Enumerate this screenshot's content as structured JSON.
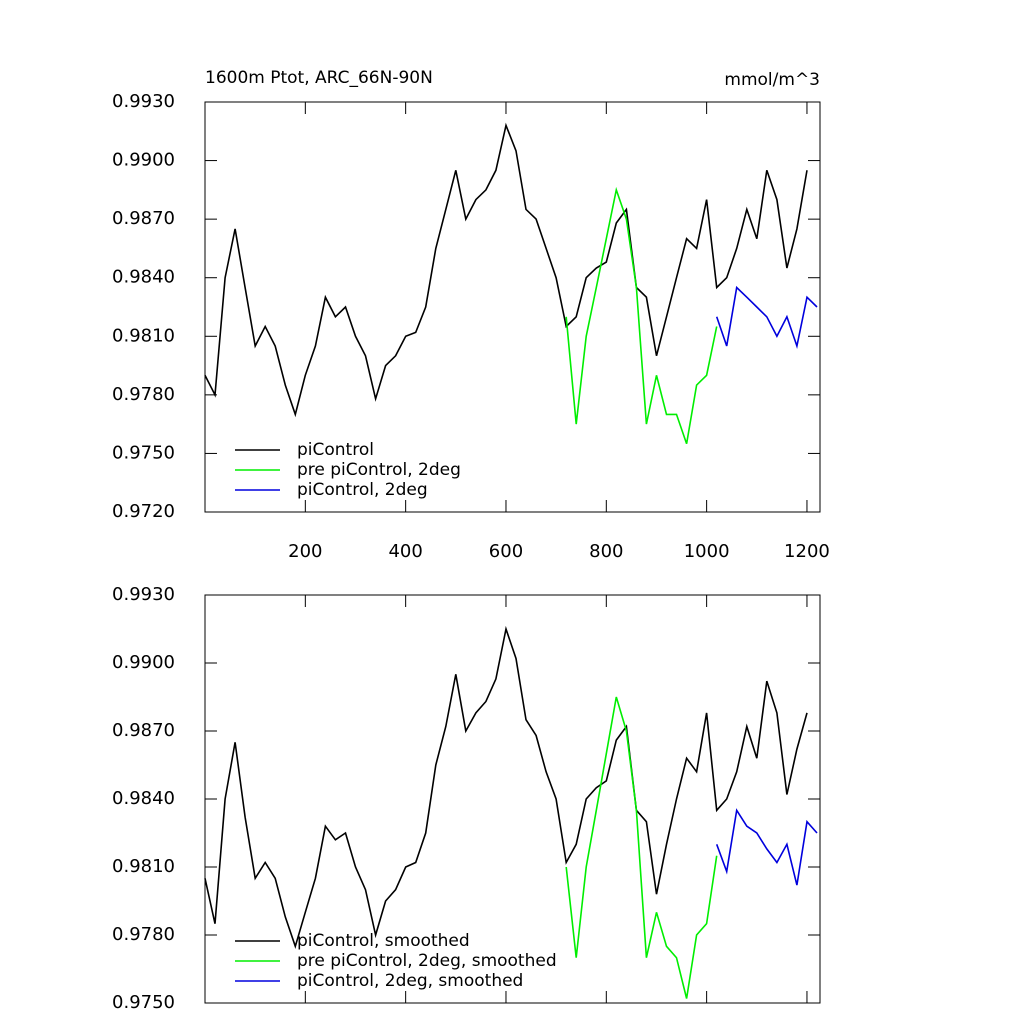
{
  "chart_data": [
    {
      "type": "line",
      "title": "1600m Ptot, ARC_66N-90N",
      "units": "mmol/m^3",
      "xlim": [
        0,
        1226
      ],
      "xticks": [
        200,
        400,
        600,
        800,
        1000,
        1200
      ],
      "ylim": [
        0.972,
        0.993
      ],
      "yticks": [
        {
          "value": 0.972,
          "label": "0.9720"
        },
        {
          "value": 0.975,
          "label": "0.9750"
        },
        {
          "value": 0.978,
          "label": "0.9780"
        },
        {
          "value": 0.981,
          "label": "0.9810"
        },
        {
          "value": 0.984,
          "label": "0.9840"
        },
        {
          "value": 0.987,
          "label": "0.9870"
        },
        {
          "value": 0.99,
          "label": "0.9900"
        },
        {
          "value": 0.993,
          "label": "0.9930"
        }
      ],
      "legend": "lower left",
      "series": [
        {
          "name": "piControl",
          "color": "#000000",
          "x": [
            0,
            20,
            40,
            60,
            80,
            100,
            120,
            140,
            160,
            180,
            200,
            220,
            240,
            260,
            280,
            300,
            320,
            340,
            360,
            380,
            400,
            420,
            440,
            460,
            480,
            500,
            520,
            540,
            560,
            580,
            600,
            620,
            640,
            660,
            680,
            700,
            720,
            740,
            760,
            780,
            800,
            820,
            840,
            860,
            880,
            900,
            920,
            940,
            960,
            980,
            1000,
            1020,
            1040,
            1060,
            1080,
            1100,
            1120,
            1140,
            1160,
            1180,
            1200
          ],
          "values": [
            0.979,
            0.978,
            0.984,
            0.9865,
            0.9835,
            0.9805,
            0.9815,
            0.9805,
            0.9785,
            0.977,
            0.979,
            0.9805,
            0.983,
            0.982,
            0.9825,
            0.981,
            0.98,
            0.9778,
            0.9795,
            0.98,
            0.981,
            0.9812,
            0.9825,
            0.9855,
            0.9875,
            0.9895,
            0.987,
            0.988,
            0.9885,
            0.9895,
            0.9918,
            0.9905,
            0.9875,
            0.987,
            0.9855,
            0.984,
            0.9815,
            0.982,
            0.984,
            0.9845,
            0.9848,
            0.9868,
            0.9875,
            0.9835,
            0.983,
            0.98,
            0.982,
            0.984,
            0.986,
            0.9855,
            0.988,
            0.9835,
            0.984,
            0.9855,
            0.9875,
            0.986,
            0.9895,
            0.988,
            0.9845,
            0.9865,
            0.9895
          ]
        },
        {
          "name": "pre piControl, 2deg",
          "color": "#00ee00",
          "x": [
            720,
            740,
            760,
            780,
            800,
            820,
            840,
            860,
            880,
            900,
            920,
            940,
            960,
            980,
            1000,
            1020
          ],
          "values": [
            0.982,
            0.9765,
            0.981,
            0.9835,
            0.986,
            0.9885,
            0.987,
            0.9835,
            0.9765,
            0.979,
            0.977,
            0.977,
            0.9755,
            0.9785,
            0.979,
            0.9815
          ]
        },
        {
          "name": "piControl, 2deg",
          "color": "#0000dd",
          "x": [
            1020,
            1040,
            1060,
            1080,
            1100,
            1120,
            1140,
            1160,
            1180,
            1200,
            1220
          ],
          "values": [
            0.982,
            0.9805,
            0.9835,
            0.983,
            0.9825,
            0.982,
            0.981,
            0.982,
            0.9805,
            0.983,
            0.9825
          ]
        }
      ]
    },
    {
      "type": "line",
      "xlim": [
        0,
        1226
      ],
      "xticks": [
        200,
        400,
        600,
        800,
        1000,
        1200
      ],
      "ylim": [
        0.975,
        0.993
      ],
      "yticks": [
        {
          "value": 0.975,
          "label": "0.9750"
        },
        {
          "value": 0.978,
          "label": "0.9780"
        },
        {
          "value": 0.981,
          "label": "0.9810"
        },
        {
          "value": 0.984,
          "label": "0.9840"
        },
        {
          "value": 0.987,
          "label": "0.9870"
        },
        {
          "value": 0.99,
          "label": "0.9900"
        },
        {
          "value": 0.993,
          "label": "0.9930"
        }
      ],
      "legend": "lower left",
      "series": [
        {
          "name": "piControl, smoothed",
          "color": "#000000",
          "x": [
            0,
            20,
            40,
            60,
            80,
            100,
            120,
            140,
            160,
            180,
            200,
            220,
            240,
            260,
            280,
            300,
            320,
            340,
            360,
            380,
            400,
            420,
            440,
            460,
            480,
            500,
            520,
            540,
            560,
            580,
            600,
            620,
            640,
            660,
            680,
            700,
            720,
            740,
            760,
            780,
            800,
            820,
            840,
            860,
            880,
            900,
            920,
            940,
            960,
            980,
            1000,
            1020,
            1040,
            1060,
            1080,
            1100,
            1120,
            1140,
            1160,
            1180,
            1200
          ],
          "values": [
            0.9805,
            0.9785,
            0.984,
            0.9865,
            0.9832,
            0.9805,
            0.9812,
            0.9805,
            0.9788,
            0.9775,
            0.979,
            0.9805,
            0.9828,
            0.9822,
            0.9825,
            0.981,
            0.98,
            0.978,
            0.9795,
            0.98,
            0.981,
            0.9812,
            0.9825,
            0.9855,
            0.9872,
            0.9895,
            0.987,
            0.9878,
            0.9883,
            0.9893,
            0.9915,
            0.9902,
            0.9875,
            0.9868,
            0.9852,
            0.984,
            0.9812,
            0.982,
            0.984,
            0.9845,
            0.9848,
            0.9866,
            0.9872,
            0.9835,
            0.983,
            0.9798,
            0.982,
            0.984,
            0.9858,
            0.9852,
            0.9878,
            0.9835,
            0.984,
            0.9852,
            0.9872,
            0.9858,
            0.9892,
            0.9878,
            0.9842,
            0.9862,
            0.9878
          ]
        },
        {
          "name": "pre piControl, 2deg, smoothed",
          "color": "#00ee00",
          "x": [
            720,
            740,
            760,
            780,
            800,
            820,
            840,
            860,
            880,
            900,
            920,
            940,
            960,
            980,
            1000,
            1020
          ],
          "values": [
            0.981,
            0.977,
            0.981,
            0.9835,
            0.986,
            0.9885,
            0.987,
            0.9835,
            0.977,
            0.979,
            0.9775,
            0.977,
            0.9752,
            0.978,
            0.9785,
            0.9815
          ]
        },
        {
          "name": "piControl, 2deg, smoothed",
          "color": "#0000dd",
          "x": [
            1020,
            1040,
            1060,
            1080,
            1100,
            1120,
            1140,
            1160,
            1180,
            1200,
            1220
          ],
          "values": [
            0.982,
            0.9808,
            0.9835,
            0.9828,
            0.9825,
            0.9818,
            0.9812,
            0.982,
            0.9802,
            0.983,
            0.9825
          ]
        }
      ]
    }
  ]
}
